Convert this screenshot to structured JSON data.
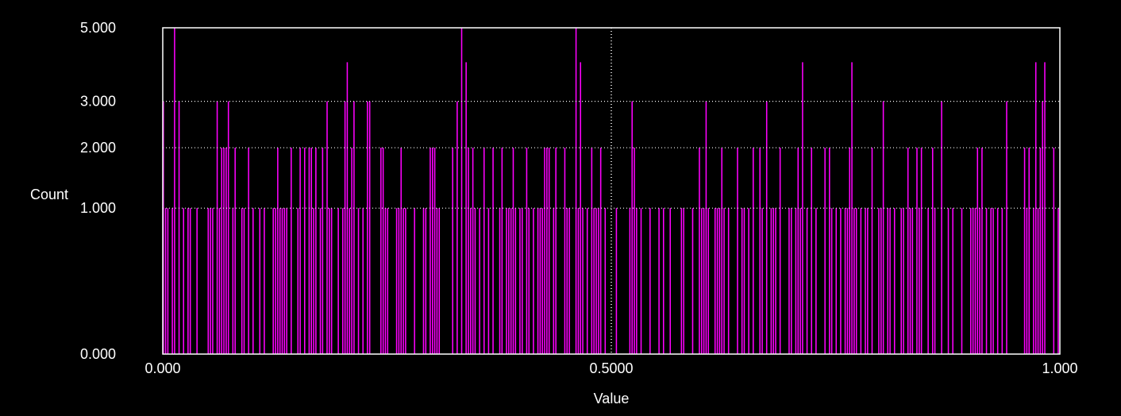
{
  "chart_data": {
    "type": "bar",
    "title": "",
    "xlabel": "Value",
    "ylabel": "Count",
    "xlim": [
      0.0,
      1.0
    ],
    "ylim": [
      0,
      5
    ],
    "x_ticks": [
      "0.000",
      "0.5000",
      "1.000"
    ],
    "y_ticks": [
      "0.000",
      "1.000",
      "2.000",
      "3.000",
      "5.000"
    ],
    "y_tick_values": [
      0,
      1,
      2,
      3,
      5
    ],
    "y_scale": "sqrt",
    "grid": "horizontal dotted at 1, 2, 3",
    "cursor_x": 0.5,
    "bar_color": "#ff00ff",
    "background": "#000000",
    "bins": 400,
    "peaks": [
      {
        "x": 0.012,
        "count": 5
      },
      {
        "x": 0.333,
        "count": 5
      },
      {
        "x": 0.46,
        "count": 5
      },
      {
        "x": 0.982,
        "count": 4
      }
    ],
    "notes_range": "counts per bin range 0–5"
  }
}
